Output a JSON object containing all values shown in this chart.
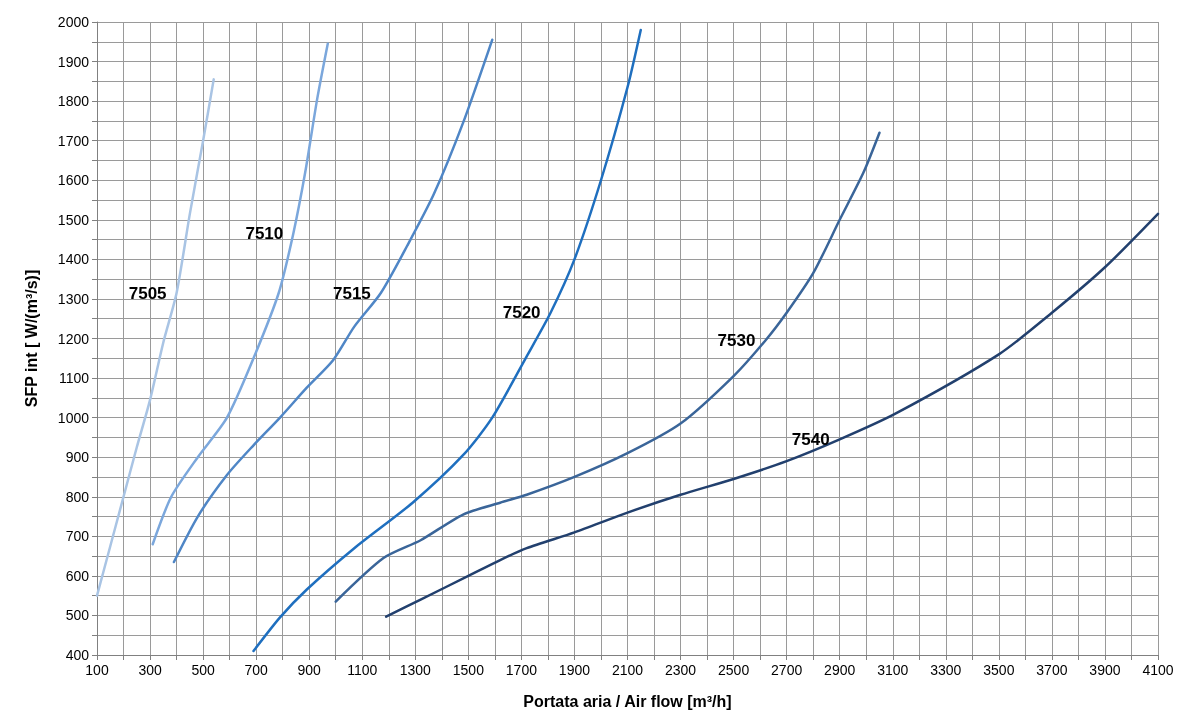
{
  "chart_data": {
    "type": "line",
    "xlabel": "Portata aria / Air flow [m³/h]",
    "ylabel": "SFP int [ W/(m³/s)]",
    "xlim": [
      100,
      4100
    ],
    "ylim": [
      400,
      2000
    ],
    "xticks": [
      100,
      {
        "value": 200,
        "label": null
      },
      300,
      {
        "value": 400,
        "label": null
      },
      500,
      {
        "value": 600,
        "label": null
      },
      700,
      {
        "value": 800,
        "label": null
      },
      900,
      {
        "value": 1000,
        "label": null
      },
      1100,
      {
        "value": 1200,
        "label": null
      },
      1300,
      {
        "value": 1400,
        "label": null
      },
      1500,
      {
        "value": 1600,
        "label": null
      },
      1700,
      {
        "value": 1800,
        "label": null
      },
      1900,
      {
        "value": 2000,
        "label": null
      },
      2100,
      {
        "value": 2200,
        "label": null
      },
      2300,
      {
        "value": 2400,
        "label": null
      },
      2500,
      {
        "value": 2600,
        "label": null
      },
      2700,
      {
        "value": 2800,
        "label": null
      },
      2900,
      {
        "value": 3000,
        "label": null
      },
      3100,
      {
        "value": 3200,
        "label": null
      },
      3300,
      {
        "value": 3400,
        "label": null
      },
      3500,
      {
        "value": 3600,
        "label": null
      },
      3700,
      {
        "value": 3800,
        "label": null
      },
      3900,
      {
        "value": 4000,
        "label": null
      },
      4100
    ],
    "yticks": [
      400,
      {
        "value": 450,
        "label": null
      },
      500,
      {
        "value": 550,
        "label": null
      },
      600,
      {
        "value": 650,
        "label": null
      },
      700,
      {
        "value": 750,
        "label": null
      },
      800,
      {
        "value": 850,
        "label": null
      },
      900,
      {
        "value": 950,
        "label": null
      },
      1000,
      {
        "value": 1050,
        "label": null
      },
      1100,
      {
        "value": 1150,
        "label": null
      },
      1200,
      {
        "value": 1250,
        "label": null
      },
      1300,
      {
        "value": 1350,
        "label": null
      },
      1400,
      {
        "value": 1450,
        "label": null
      },
      1500,
      {
        "value": 1550,
        "label": null
      },
      1600,
      {
        "value": 1650,
        "label": null
      },
      1700,
      {
        "value": 1750,
        "label": null
      },
      1800,
      {
        "value": 1850,
        "label": null
      },
      1900,
      {
        "value": 1950,
        "label": null
      },
      2000
    ],
    "grid": true,
    "legend": false,
    "marker": "none",
    "line_style": "solid",
    "series": [
      {
        "name": "7505",
        "color": "#a9c4e4",
        "x": [
          100,
          150,
          200,
          250,
          300,
          350,
          400,
          450,
          500,
          540
        ],
        "values": [
          550,
          675,
          800,
          925,
          1045,
          1190,
          1315,
          1515,
          1700,
          1855
        ]
      },
      {
        "name": "7510",
        "color": "#7ba7dc",
        "x": [
          310,
          380,
          480,
          590,
          690,
          785,
          840,
          885,
          930,
          970
        ],
        "values": [
          680,
          800,
          900,
          1000,
          1150,
          1315,
          1465,
          1620,
          1805,
          1945
        ]
      },
      {
        "name": "7515",
        "color": "#4f86c6",
        "x": [
          390,
          480,
          590,
          690,
          790,
          890,
          990,
          1070,
          1170,
          1270,
          1370,
          1480,
          1590
        ],
        "values": [
          635,
          750,
          855,
          930,
          1000,
          1075,
          1145,
          1230,
          1315,
          1435,
          1565,
          1745,
          1955
        ]
      },
      {
        "name": "7520",
        "color": "#1f6fbf",
        "x": [
          690,
          790,
          890,
          1070,
          1290,
          1480,
          1590,
          1720,
          1810,
          1900,
          2000,
          2100,
          2150
        ],
        "values": [
          410,
          495,
          565,
          670,
          785,
          905,
          1000,
          1155,
          1265,
          1400,
          1600,
          1835,
          1980
        ]
      },
      {
        "name": "7530",
        "color": "#3a6599",
        "x": [
          1000,
          1180,
          1320,
          1480,
          1620,
          1720,
          1900,
          2100,
          2300,
          2500,
          2620,
          2700,
          2800,
          2900,
          2990,
          3050
        ],
        "values": [
          535,
          645,
          690,
          755,
          785,
          805,
          850,
          910,
          985,
          1105,
          1195,
          1265,
          1365,
          1500,
          1620,
          1720
        ]
      },
      {
        "name": "7540",
        "color": "#22406e",
        "x": [
          1190,
          1320,
          1500,
          1620,
          1720,
          1900,
          2100,
          2300,
          2500,
          2700,
          2900,
          3110,
          3500,
          3700,
          3900,
          4100
        ],
        "values": [
          497,
          540,
          600,
          640,
          670,
          710,
          760,
          805,
          845,
          890,
          945,
          1010,
          1160,
          1265,
          1380,
          1515
        ]
      }
    ]
  }
}
